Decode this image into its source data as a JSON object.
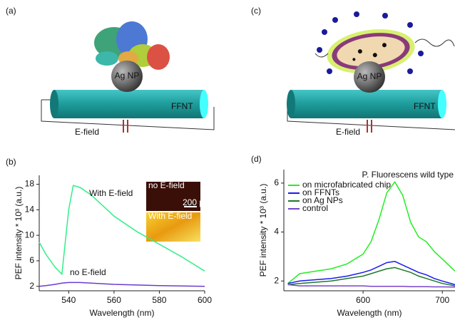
{
  "panels": {
    "a": {
      "label": "(a)",
      "np": "Ag NP",
      "tube": "FFNT",
      "field": "E-field"
    },
    "c": {
      "label": "(c)",
      "np": "Ag NP",
      "tube": "FFNT",
      "field": "E-field"
    },
    "inset": {
      "top": "no E-field",
      "scale": "200 μm",
      "bottom": "With E-field"
    }
  },
  "chart_data": [
    {
      "type": "line",
      "label": "(b)",
      "xlabel": "Wavelength (nm)",
      "ylabel": "PEF intensity * 10³ (a.u.)",
      "x": [
        527,
        530,
        534,
        537,
        540,
        542,
        545,
        550,
        560,
        570,
        580,
        590,
        600
      ],
      "series": [
        {
          "color": "#33ee88",
          "values": [
            8.9,
            7,
            5,
            3.9,
            14,
            17.8,
            17.5,
            16.3,
            13,
            10.6,
            8.6,
            6.6,
            4.4
          ]
        },
        {
          "color": "#6a3ccf",
          "values": [
            2.0,
            2.1,
            2.3,
            2.5,
            2.6,
            2.6,
            2.6,
            2.5,
            2.3,
            2.2,
            2.1,
            2.05,
            2.0
          ]
        }
      ],
      "annotations": [
        "With E-field",
        "no E-field"
      ],
      "xlim": [
        527,
        600
      ],
      "ylim": [
        1.3,
        19.4
      ],
      "xticks": [
        540,
        560,
        580,
        600
      ],
      "yticks": [
        2,
        6,
        10,
        14,
        18
      ],
      "grid": false
    },
    {
      "type": "line",
      "label": "(d)",
      "title": "P. Fluorescens wild type",
      "xlabel": "Wavelength (nm)",
      "ylabel": "PEF intensity * 10³ (a.u.)",
      "x": [
        505,
        520,
        540,
        560,
        580,
        600,
        610,
        620,
        630,
        640,
        650,
        660,
        670,
        680,
        690,
        700,
        716
      ],
      "series": [
        {
          "name": "on microfabricated chip",
          "color": "#22ee22",
          "values": [
            1.9,
            2.3,
            2.4,
            2.5,
            2.7,
            3.1,
            3.6,
            4.5,
            5.6,
            6.05,
            5.5,
            4.4,
            3.8,
            3.6,
            3.2,
            2.9,
            2.4
          ]
        },
        {
          "name": "on FFNTs",
          "color": "#1a1aee",
          "values": [
            1.9,
            2.0,
            2.05,
            2.1,
            2.2,
            2.35,
            2.45,
            2.6,
            2.75,
            2.8,
            2.65,
            2.5,
            2.35,
            2.25,
            2.1,
            2.0,
            1.85
          ]
        },
        {
          "name": "on Ag NPs",
          "color": "#1d7a2a",
          "values": [
            1.85,
            1.9,
            1.95,
            2.0,
            2.1,
            2.2,
            2.3,
            2.4,
            2.5,
            2.55,
            2.45,
            2.35,
            2.2,
            2.1,
            2.0,
            1.9,
            1.8
          ]
        },
        {
          "name": "control",
          "color": "#7744cc",
          "values": [
            1.85,
            1.8,
            1.8,
            1.8,
            1.8,
            1.8,
            1.78,
            1.78,
            1.78,
            1.78,
            1.78,
            1.77,
            1.77,
            1.77,
            1.76,
            1.76,
            1.75
          ]
        }
      ],
      "xlim": [
        500,
        716
      ],
      "ylim": [
        1.6,
        6.55
      ],
      "xticks": [
        600,
        700
      ],
      "yticks": [
        2,
        4,
        6
      ],
      "grid": false,
      "legend": "top-left"
    }
  ]
}
